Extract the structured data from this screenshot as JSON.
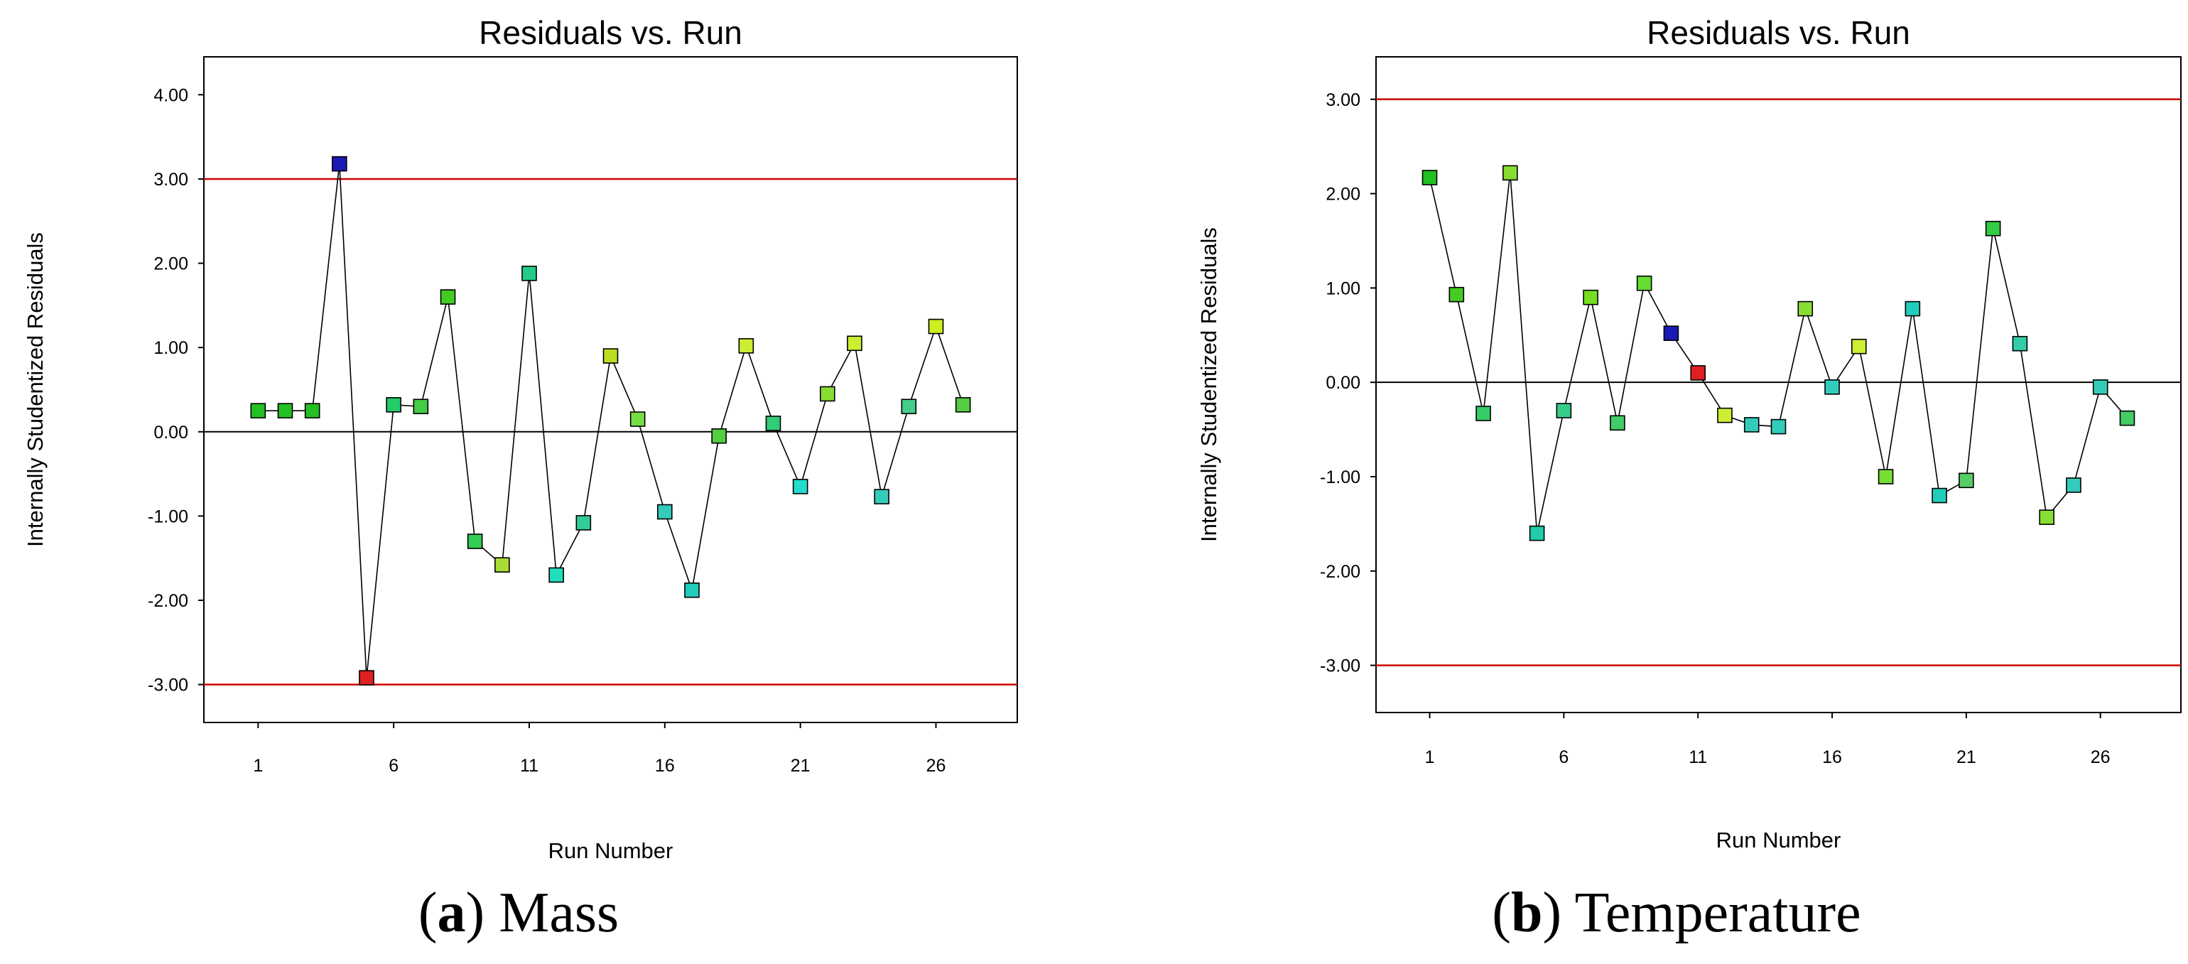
{
  "chart_data": [
    {
      "type": "scatter",
      "title": "Residuals vs. Run",
      "xlabel": "Run Number",
      "ylabel": "Internally Studentized Residuals",
      "xlim": [
        -1,
        29
      ],
      "ylim": [
        -3.45,
        4.45
      ],
      "xticks": [
        1,
        6,
        11,
        16,
        21,
        26
      ],
      "xtick_labels": [
        "1",
        "6",
        "11",
        "16",
        "21",
        "26"
      ],
      "yticks": [
        -3,
        -2,
        -1,
        0,
        1,
        2,
        3,
        4
      ],
      "ytick_labels": [
        "-3.00",
        "-2.00",
        "-1.00",
        "0.00",
        "1.00",
        "2.00",
        "3.00",
        "4.00"
      ],
      "limit_lines": [
        3,
        -3
      ],
      "limit_line_color": "#cc0000",
      "zero_line": 0,
      "connected": true,
      "x": [
        1,
        2,
        3,
        4,
        5,
        6,
        7,
        8,
        9,
        10,
        11,
        12,
        13,
        14,
        15,
        16,
        17,
        18,
        19,
        20,
        21,
        22,
        23,
        24,
        25,
        26,
        27
      ],
      "values": [
        0.25,
        0.25,
        0.25,
        3.18,
        -2.92,
        0.32,
        0.3,
        1.6,
        -1.3,
        -1.58,
        1.88,
        -1.7,
        -1.08,
        0.9,
        0.15,
        -0.95,
        -1.88,
        -0.05,
        1.02,
        0.1,
        -0.65,
        0.45,
        1.05,
        -0.77,
        0.3,
        1.25,
        0.32
      ],
      "colors": [
        "#22c022",
        "#22c022",
        "#22c022",
        "#1a1ab4",
        "#e02020",
        "#22cc66",
        "#44cc44",
        "#44cc22",
        "#33cc55",
        "#aadd33",
        "#22cc88",
        "#22ddbb",
        "#33cc99",
        "#bbdd22",
        "#77dd44",
        "#33ccbb",
        "#22ccbb",
        "#55cc44",
        "#ccee33",
        "#33cc77",
        "#22ddcc",
        "#88dd33",
        "#ccee33",
        "#33ccbb",
        "#44cc88",
        "#ccee22",
        "#55cc44"
      ]
    },
    {
      "type": "scatter",
      "title": "Residuals vs. Run",
      "xlabel": "Run Number",
      "ylabel": "Internally Studentized Residuals",
      "xlim": [
        -1,
        29
      ],
      "ylim": [
        -3.5,
        3.45
      ],
      "xticks": [
        1,
        6,
        11,
        16,
        21,
        26
      ],
      "xtick_labels": [
        "1",
        "6",
        "11",
        "16",
        "21",
        "26"
      ],
      "yticks": [
        -3,
        -2,
        -1,
        0,
        1,
        2,
        3
      ],
      "ytick_labels": [
        "-3.00",
        "-2.00",
        "-1.00",
        "0.00",
        "1.00",
        "2.00",
        "3.00"
      ],
      "limit_lines": [
        3,
        -3
      ],
      "limit_line_color": "#cc0000",
      "zero_line": 0,
      "connected": true,
      "x": [
        1,
        2,
        3,
        4,
        5,
        6,
        7,
        8,
        9,
        10,
        11,
        12,
        13,
        14,
        15,
        16,
        17,
        18,
        19,
        20,
        21,
        22,
        23,
        24,
        25,
        26,
        27
      ],
      "values": [
        2.17,
        0.93,
        -0.33,
        2.22,
        -1.6,
        -0.3,
        0.9,
        -0.43,
        1.05,
        0.52,
        0.1,
        -0.35,
        -0.45,
        -0.47,
        0.78,
        -0.05,
        0.38,
        -1.0,
        0.78,
        -1.2,
        -1.04,
        1.63,
        0.41,
        -1.43,
        -1.09,
        -0.05,
        -0.38
      ],
      "colors": [
        "#22c022",
        "#44cc22",
        "#33cc66",
        "#88dd33",
        "#22ccaa",
        "#33cc88",
        "#77dd22",
        "#44cc66",
        "#66dd33",
        "#1a1ab4",
        "#e02020",
        "#ccee33",
        "#33ccbb",
        "#33ccbb",
        "#88dd33",
        "#33ccbb",
        "#ccee33",
        "#77dd33",
        "#22ccbb",
        "#22ccbb",
        "#55cc66",
        "#33cc44",
        "#33ccaa",
        "#88dd33",
        "#33ccbb",
        "#33ccbb",
        "#44cc66"
      ]
    }
  ],
  "captions": [
    {
      "letter": "a",
      "text": " Mass"
    },
    {
      "letter": "b",
      "text": " Temperature"
    }
  ]
}
